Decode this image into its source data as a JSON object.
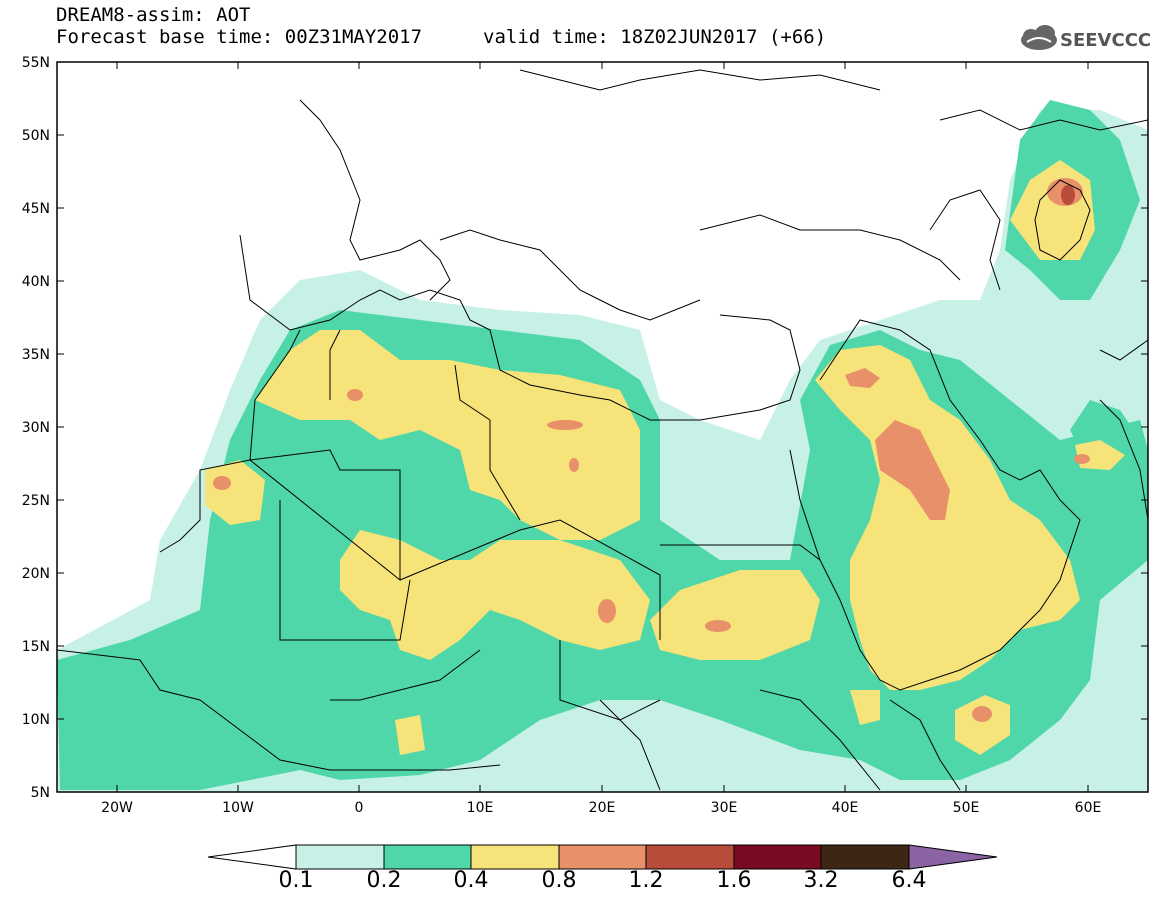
{
  "header": {
    "title": "DREAM8-assim: AOT",
    "base_time": "Forecast base time: 00Z31MAY2017",
    "valid_time": "valid time: 18Z02JUN2017 (+66)",
    "logo_text": "SEEVCCC"
  },
  "map": {
    "lat_labels": [
      "55N",
      "50N",
      "45N",
      "40N",
      "35N",
      "30N",
      "25N",
      "20N",
      "15N",
      "10N",
      "5N"
    ],
    "lon_labels": [
      "20W",
      "10W",
      "0",
      "10E",
      "20E",
      "30E",
      "40E",
      "50E",
      "60E"
    ]
  },
  "colorbar": {
    "labels": [
      "0.1",
      "0.2",
      "0.4",
      "0.8",
      "1.2",
      "1.6",
      "3.2",
      "6.4"
    ],
    "colors": [
      "#ffffff",
      "#c7f1e6",
      "#4fd6a9",
      "#f6e47a",
      "#e8906a",
      "#b74c3a",
      "#7a0a22",
      "#3d2614",
      "#8b64a4"
    ]
  },
  "colors": {
    "level1": "#c7f1e6",
    "level2": "#4fd6a9",
    "level3": "#f6e47a",
    "level4": "#e8906a",
    "level5": "#b74c3a"
  }
}
